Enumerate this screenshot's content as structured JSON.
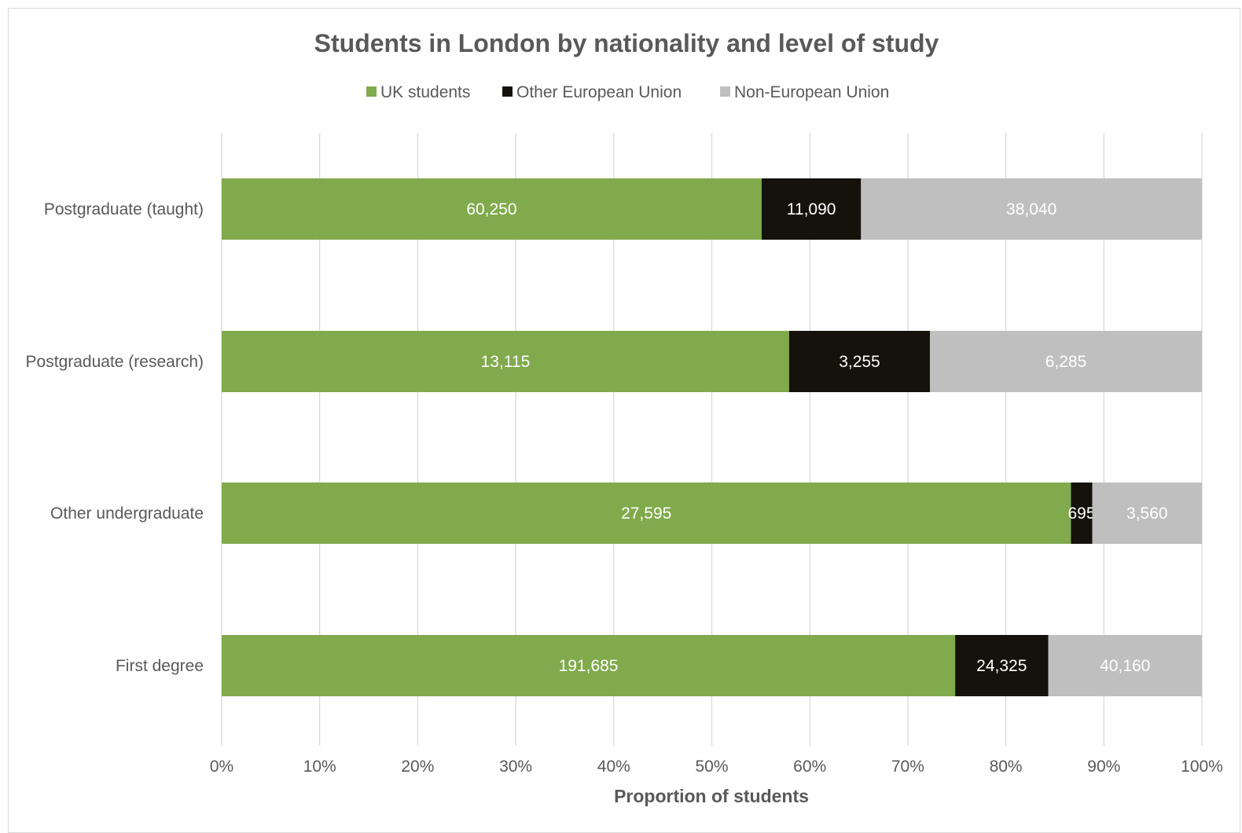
{
  "chart_data": {
    "type": "bar",
    "orientation": "horizontal",
    "stacked": "percent",
    "title": "Students in London by nationality and level of study",
    "xlabel": "Proportion of students",
    "ylabel": "",
    "xlim": [
      0,
      100
    ],
    "x_ticks": [
      "0%",
      "10%",
      "20%",
      "30%",
      "40%",
      "50%",
      "60%",
      "70%",
      "80%",
      "90%",
      "100%"
    ],
    "grid": true,
    "legend_position": "top",
    "categories": [
      "Postgraduate (taught)",
      "Postgraduate (research)",
      "Other undergraduate",
      "First degree"
    ],
    "series": [
      {
        "name": "UK students",
        "color": "#80aa4c",
        "values": [
          60250,
          13115,
          27595,
          191685
        ],
        "labels": [
          "60,250",
          "13,115",
          "27,595",
          "191,685"
        ]
      },
      {
        "name": "Other European Union",
        "color": "#14120a",
        "values": [
          11090,
          3255,
          695,
          24325
        ],
        "labels": [
          "11,090",
          "3,255",
          "695",
          "24,325"
        ]
      },
      {
        "name": "Non-European Union",
        "color": "#bfbfbf",
        "values": [
          38040,
          6285,
          3560,
          40160
        ],
        "labels": [
          "38,040",
          "6,285",
          "3,560",
          "40,160"
        ]
      }
    ]
  }
}
